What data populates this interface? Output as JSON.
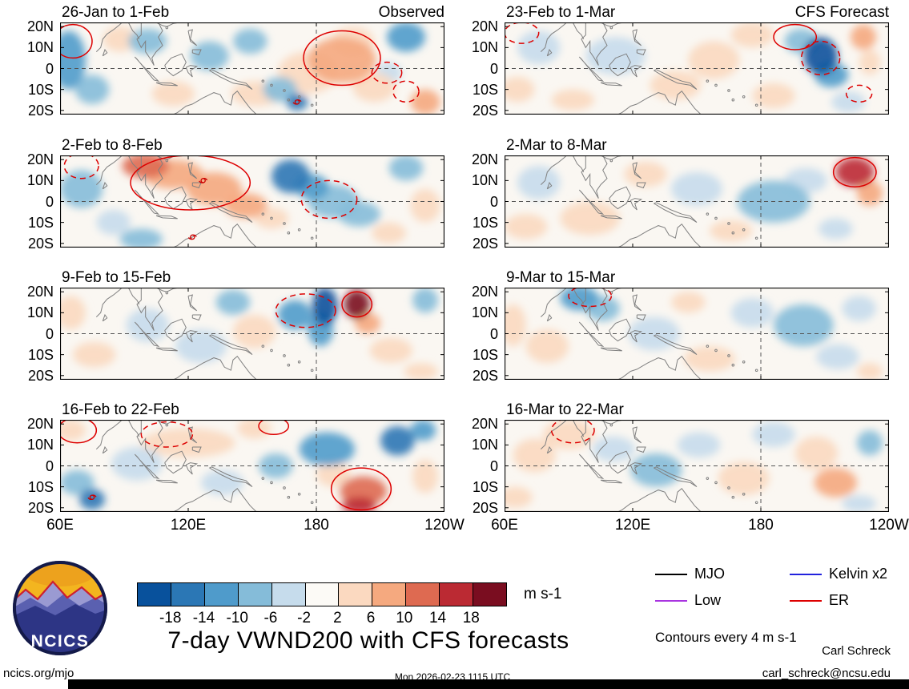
{
  "figure": {
    "main_title": "7-day VWND200 with CFS forecasts",
    "site_link": "ncics.org/mjo",
    "timestamp": "Mon 2026-02-23 1115 UTC",
    "credit_name": "Carl Schreck",
    "credit_email": "carl_schreck@ncsu.edu",
    "logo_text": "NCICS"
  },
  "chart_data": {
    "type": "heatmap",
    "subtype": "filled-contour longitude-latitude anomaly maps, 4 rows x 2 columns",
    "title": "7-day VWND200 with CFS forecasts",
    "unit": "m s-1",
    "columns": [
      {
        "label": "Observed"
      },
      {
        "label": "CFS Forecast"
      }
    ],
    "axes": {
      "x_ticks": [
        "60E",
        "120E",
        "180",
        "120W"
      ],
      "x_values": [
        60,
        120,
        180,
        240
      ],
      "y_ticks": [
        "20N",
        "10N",
        "0",
        "10S",
        "20S"
      ],
      "y_values": [
        20,
        10,
        0,
        -10,
        -20
      ],
      "lon_range": [
        60,
        240
      ],
      "lat_range": [
        -22,
        22
      ],
      "grid": "dashed equator line and dashed 180 meridian"
    },
    "colorbar": {
      "levels": [
        -18,
        -14,
        -10,
        -6,
        -2,
        2,
        6,
        10,
        14,
        18
      ],
      "labels": [
        "-18",
        "-14",
        "-10",
        "-6",
        "-2",
        "2",
        "6",
        "10",
        "14",
        "18"
      ],
      "colors": [
        "#08519c",
        "#2b77b5",
        "#4f9bcb",
        "#85bcd9",
        "#c6dcec",
        "#fcfaf6",
        "#fbd9c0",
        "#f5a97f",
        "#de6a51",
        "#bb2a33",
        "#7a0d20"
      ],
      "unit": "m s-1"
    },
    "legend": {
      "items": [
        {
          "label": "MJO",
          "color": "#000000"
        },
        {
          "label": "Kelvin x2",
          "color": "#2222dd"
        },
        {
          "label": "Low",
          "color": "#a934e0"
        },
        {
          "label": "ER",
          "color": "#dd0000"
        }
      ],
      "note": "Contours every 4 m s-1"
    },
    "anomaly_format": "[lon_deg_east, lat_deg, radius_lon_deg, radius_lat_deg, value_m_per_s]",
    "contour_format": "[lon_deg_east, lat_deg, radius_lon_deg, radius_lat_deg, line_style]",
    "panels": [
      {
        "title": "26-Jan to 1-Feb",
        "corner_label": "Observed",
        "row": 0,
        "col": 0,
        "anomalies": [
          [
            64,
            4,
            8,
            14,
            -10
          ],
          [
            75,
            -10,
            8,
            7,
            -6
          ],
          [
            88,
            14,
            8,
            6,
            4
          ],
          [
            101,
            13,
            9,
            6,
            -6
          ],
          [
            113,
            -12,
            10,
            6,
            4
          ],
          [
            130,
            6,
            9,
            7,
            -6
          ],
          [
            149,
            13,
            8,
            6,
            -8
          ],
          [
            152,
            -12,
            12,
            6,
            4
          ],
          [
            176,
            -2,
            14,
            10,
            6
          ],
          [
            192,
            4,
            16,
            11,
            10
          ],
          [
            197,
            13,
            10,
            7,
            6
          ],
          [
            207,
            -9,
            10,
            7,
            6
          ],
          [
            171,
            -16,
            5,
            4,
            -16
          ],
          [
            163,
            -10,
            8,
            6,
            -8
          ],
          [
            222,
            15,
            9,
            7,
            -10
          ],
          [
            231,
            -16,
            7,
            6,
            8
          ],
          [
            214,
            -2,
            6,
            5,
            -4
          ]
        ],
        "er_contours": [
          [
            192,
            5,
            18,
            13,
            "solid"
          ],
          [
            66,
            13,
            9,
            8,
            "solid"
          ],
          [
            213,
            -2,
            7,
            5,
            "dashed"
          ],
          [
            222,
            -11,
            6,
            5,
            "dashed"
          ]
        ],
        "cyclone_symbols": [
          [
            171,
            -16
          ]
        ]
      },
      {
        "title": "23-Feb to 1-Mar",
        "corner_label": "CFS Forecast",
        "row": 0,
        "col": 1,
        "anomalies": [
          [
            208,
            6,
            8,
            9,
            -18
          ],
          [
            213,
            -3,
            8,
            6,
            -10
          ],
          [
            199,
            13,
            8,
            6,
            -8
          ],
          [
            228,
            15,
            6,
            6,
            10
          ],
          [
            231,
            3,
            5,
            6,
            6
          ],
          [
            176,
            16,
            10,
            6,
            6
          ],
          [
            158,
            4,
            12,
            9,
            4
          ],
          [
            140,
            -8,
            12,
            7,
            4
          ],
          [
            112,
            6,
            14,
            9,
            -4
          ],
          [
            76,
            10,
            10,
            8,
            -4
          ],
          [
            66,
            -10,
            8,
            6,
            4
          ],
          [
            92,
            -15,
            10,
            5,
            4
          ],
          [
            186,
            -13,
            10,
            6,
            4
          ],
          [
            221,
            -16,
            8,
            5,
            -4
          ]
        ],
        "er_contours": [
          [
            196,
            15,
            10,
            6,
            "solid"
          ],
          [
            208,
            5,
            9,
            8,
            "dashed"
          ],
          [
            226,
            -12,
            6,
            4,
            "dashed"
          ],
          [
            68,
            17,
            8,
            5,
            "dashed"
          ]
        ],
        "cyclone_symbols": []
      },
      {
        "title": "2-Feb to 8-Feb",
        "corner_label": "",
        "row": 1,
        "col": 0,
        "anomalies": [
          [
            100,
            17,
            11,
            6,
            12
          ],
          [
            113,
            13,
            14,
            7,
            10
          ],
          [
            132,
            6,
            13,
            8,
            8
          ],
          [
            147,
            -2,
            10,
            6,
            8
          ],
          [
            159,
            -8,
            8,
            5,
            4
          ],
          [
            168,
            12,
            9,
            8,
            -16
          ],
          [
            178,
            7,
            8,
            6,
            -12
          ],
          [
            188,
            0,
            12,
            8,
            -8
          ],
          [
            200,
            -6,
            10,
            6,
            -6
          ],
          [
            70,
            6,
            10,
            9,
            -6
          ],
          [
            85,
            -10,
            8,
            6,
            -4
          ],
          [
            98,
            -18,
            10,
            5,
            -6
          ],
          [
            222,
            16,
            8,
            6,
            -8
          ],
          [
            231,
            -2,
            7,
            8,
            6
          ],
          [
            214,
            -15,
            8,
            5,
            4
          ]
        ],
        "er_contours": [
          [
            121,
            9,
            28,
            13,
            "solid"
          ],
          [
            186,
            1,
            13,
            9,
            "dashed"
          ],
          [
            70,
            17,
            8,
            6,
            "dashed"
          ]
        ],
        "cyclone_symbols": [
          [
            127,
            10
          ],
          [
            122,
            -17
          ]
        ]
      },
      {
        "title": "2-Mar to 8-Mar",
        "corner_label": "",
        "row": 1,
        "col": 1,
        "anomalies": [
          [
            224,
            14,
            9,
            7,
            16
          ],
          [
            231,
            4,
            6,
            6,
            8
          ],
          [
            186,
            0,
            17,
            10,
            -6
          ],
          [
            201,
            10,
            10,
            6,
            -4
          ],
          [
            150,
            6,
            12,
            8,
            -4
          ],
          [
            100,
            -8,
            14,
            8,
            4
          ],
          [
            70,
            -12,
            10,
            6,
            4
          ],
          [
            76,
            9,
            10,
            8,
            -4
          ],
          [
            126,
            13,
            10,
            6,
            4
          ],
          [
            166,
            -14,
            10,
            5,
            4
          ],
          [
            215,
            -13,
            8,
            5,
            -4
          ]
        ],
        "er_contours": [
          [
            224,
            14,
            10,
            7,
            "solid"
          ]
        ],
        "cyclone_symbols": []
      },
      {
        "title": "9-Feb to 15-Feb",
        "corner_label": "",
        "row": 2,
        "col": 0,
        "anomalies": [
          [
            184,
            13,
            6,
            9,
            -22
          ],
          [
            182,
            2,
            6,
            8,
            -12
          ],
          [
            199,
            14,
            6,
            7,
            22
          ],
          [
            204,
            5,
            6,
            5,
            10
          ],
          [
            170,
            9,
            8,
            7,
            -10
          ],
          [
            151,
            1,
            10,
            8,
            4
          ],
          [
            215,
            -8,
            10,
            6,
            6
          ],
          [
            76,
            -10,
            10,
            6,
            4
          ],
          [
            65,
            10,
            7,
            8,
            4
          ],
          [
            101,
            4,
            10,
            8,
            -4
          ],
          [
            126,
            -6,
            12,
            8,
            -4
          ],
          [
            141,
            15,
            8,
            6,
            -6
          ],
          [
            231,
            16,
            6,
            6,
            -6
          ],
          [
            229,
            -18,
            8,
            4,
            4
          ]
        ],
        "er_contours": [
          [
            175,
            11,
            14,
            8,
            "dashed"
          ],
          [
            199,
            14,
            7,
            6,
            "solid"
          ]
        ],
        "cyclone_symbols": []
      },
      {
        "title": "9-Mar to 15-Mar",
        "corner_label": "",
        "row": 2,
        "col": 1,
        "anomalies": [
          [
            95,
            17,
            9,
            6,
            -12
          ],
          [
            106,
            12,
            8,
            6,
            -6
          ],
          [
            64,
            4,
            6,
            10,
            6
          ],
          [
            80,
            -6,
            10,
            8,
            4
          ],
          [
            130,
            0,
            12,
            8,
            -4
          ],
          [
            156,
            -12,
            12,
            6,
            4
          ],
          [
            176,
            10,
            10,
            7,
            -4
          ],
          [
            200,
            4,
            14,
            10,
            -6
          ],
          [
            226,
            12,
            8,
            6,
            -4
          ],
          [
            216,
            -11,
            10,
            6,
            -4
          ],
          [
            231,
            -18,
            6,
            4,
            6
          ],
          [
            146,
            15,
            8,
            5,
            4
          ]
        ],
        "er_contours": [
          [
            100,
            18,
            10,
            5,
            "dashed"
          ]
        ],
        "cyclone_symbols": []
      },
      {
        "title": "16-Feb to 22-Feb",
        "corner_label": "",
        "row": 3,
        "col": 0,
        "anomalies": [
          [
            185,
            8,
            13,
            8,
            -10
          ],
          [
            218,
            12,
            8,
            7,
            -16
          ],
          [
            230,
            17,
            6,
            5,
            -10
          ],
          [
            202,
            -12,
            11,
            7,
            12
          ],
          [
            200,
            -19,
            8,
            4,
            18
          ],
          [
            188,
            -4,
            8,
            6,
            6
          ],
          [
            120,
            11,
            22,
            7,
            4
          ],
          [
            151,
            18,
            8,
            5,
            6
          ],
          [
            75,
            -16,
            6,
            5,
            -14
          ],
          [
            68,
            -8,
            8,
            6,
            -6
          ],
          [
            96,
            1,
            12,
            8,
            -4
          ],
          [
            136,
            -8,
            10,
            6,
            -4
          ],
          [
            161,
            0,
            8,
            6,
            -6
          ],
          [
            231,
            -5,
            6,
            8,
            6
          ],
          [
            65,
            17,
            7,
            5,
            6
          ]
        ],
        "er_contours": [
          [
            201,
            -11,
            14,
            10,
            "solid"
          ],
          [
            160,
            19,
            7,
            4,
            "solid"
          ],
          [
            68,
            17,
            9,
            6,
            "solid"
          ],
          [
            110,
            15,
            12,
            6,
            "dashed"
          ]
        ],
        "cyclone_symbols": [
          [
            75,
            -15
          ]
        ]
      },
      {
        "title": "16-Mar to 22-Mar",
        "corner_label": "",
        "row": 3,
        "col": 1,
        "anomalies": [
          [
            90,
            15,
            12,
            7,
            6
          ],
          [
            74,
            5,
            10,
            8,
            4
          ],
          [
            111,
            8,
            10,
            6,
            -4
          ],
          [
            131,
            -2,
            12,
            8,
            -6
          ],
          [
            151,
            10,
            10,
            6,
            -4
          ],
          [
            172,
            -6,
            12,
            8,
            4
          ],
          [
            215,
            -8,
            10,
            7,
            10
          ],
          [
            206,
            6,
            10,
            8,
            4
          ],
          [
            231,
            11,
            6,
            6,
            -6
          ],
          [
            186,
            15,
            10,
            6,
            -4
          ],
          [
            65,
            -15,
            8,
            5,
            4
          ],
          [
            226,
            -18,
            8,
            4,
            -4
          ]
        ],
        "er_contours": [
          [
            92,
            17,
            10,
            6,
            "dashed"
          ]
        ],
        "cyclone_symbols": []
      }
    ]
  }
}
